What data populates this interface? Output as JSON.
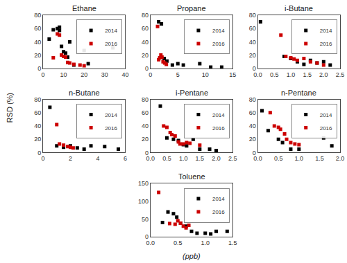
{
  "chart_data": [
    {
      "type": "scatter",
      "title": "Ethane",
      "xlim": [
        0,
        40
      ],
      "ylim": [
        0,
        80
      ],
      "xticks": [
        0,
        10,
        20,
        30,
        40
      ],
      "yticks": [
        0,
        20,
        40,
        60,
        80
      ],
      "legend": "upper right",
      "grid": false,
      "series": [
        {
          "name": "2014",
          "color": "#000000",
          "marker": "square",
          "x": [
            3,
            5,
            7,
            8,
            8,
            9,
            10,
            11,
            12,
            13,
            15,
            20,
            22,
            34
          ],
          "values": [
            44,
            58,
            60,
            62,
            57,
            33,
            25,
            23,
            17,
            40,
            5,
            27,
            7,
            31
          ]
        },
        {
          "name": "2016",
          "color": "#cc0000",
          "marker": "square",
          "x": [
            5,
            7,
            8,
            9,
            10,
            11,
            12,
            13,
            15,
            18,
            20
          ],
          "values": [
            16,
            52,
            50,
            20,
            18,
            17,
            9,
            8,
            6,
            5,
            4
          ]
        }
      ]
    },
    {
      "type": "scatter",
      "title": "Propane",
      "xlim": [
        0,
        15
      ],
      "ylim": [
        0,
        80
      ],
      "xticks": [
        0,
        5,
        10,
        15
      ],
      "yticks": [
        0,
        20,
        40,
        60,
        80
      ],
      "legend": "upper right",
      "grid": false,
      "series": [
        {
          "name": "2014",
          "color": "#000000",
          "marker": "square",
          "x": [
            1.5,
            2.0,
            2.5,
            3.0,
            4.0,
            5.0,
            6.0,
            9.0,
            11.0,
            13.0
          ],
          "values": [
            70,
            67,
            15,
            11,
            5,
            7,
            5,
            7,
            2,
            2
          ]
        },
        {
          "name": "2016",
          "color": "#cc0000",
          "marker": "square",
          "x": [
            1.3,
            1.5,
            1.7,
            1.9,
            2.1,
            2.3,
            2.6,
            2.9
          ],
          "values": [
            63,
            13,
            16,
            20,
            17,
            10,
            8,
            6
          ]
        }
      ]
    },
    {
      "type": "scatter",
      "title": "i-Butane",
      "xlim": [
        0,
        2.5
      ],
      "ylim": [
        0,
        80
      ],
      "xticks": [
        {
          "value": 0,
          "label": "0.0"
        },
        0.5,
        {
          "value": 1.0,
          "label": "1.0"
        },
        1.5,
        {
          "value": 2.0,
          "label": "2.0"
        },
        2.5
      ],
      "yticks": [
        0,
        20,
        40,
        60,
        80
      ],
      "legend": "upper right",
      "grid": false,
      "series": [
        {
          "name": "2014",
          "color": "#000000",
          "marker": "square",
          "x": [
            0.08,
            0.8,
            1.0,
            1.2,
            1.4,
            1.6,
            1.8,
            2.0,
            2.2
          ],
          "values": [
            70,
            18,
            15,
            10,
            6,
            12,
            8,
            10,
            5
          ]
        },
        {
          "name": "2016",
          "color": "#cc0000",
          "marker": "square",
          "x": [
            0.7,
            0.85,
            1.0,
            1.1,
            1.2,
            1.4,
            1.6,
            1.8,
            2.0
          ],
          "values": [
            50,
            18,
            16,
            14,
            12,
            15,
            10,
            8,
            5
          ]
        }
      ]
    },
    {
      "type": "scatter",
      "title": "n-Butane",
      "xlim": [
        0,
        6
      ],
      "ylim": [
        0,
        80
      ],
      "xticks": [
        0,
        2,
        4,
        6
      ],
      "yticks": [
        0,
        20,
        40,
        60,
        80
      ],
      "legend": "upper right",
      "grid": false,
      "series": [
        {
          "name": "2014",
          "color": "#000000",
          "marker": "square",
          "x": [
            0.5,
            1.0,
            1.5,
            2.0,
            2.5,
            3.0,
            3.5,
            4.5,
            5.5
          ],
          "values": [
            68,
            10,
            8,
            10,
            7,
            5,
            10,
            9,
            5
          ]
        },
        {
          "name": "2016",
          "color": "#cc0000",
          "marker": "square",
          "x": [
            1.0,
            1.2,
            1.5,
            1.8,
            2.0,
            2.2
          ],
          "values": [
            42,
            13,
            11,
            9,
            8,
            7
          ]
        }
      ]
    },
    {
      "type": "scatter",
      "title": "i-Pentane",
      "xlim": [
        0,
        2.5
      ],
      "ylim": [
        0,
        80
      ],
      "xticks": [
        {
          "value": 0,
          "label": "0.0"
        },
        0.5,
        {
          "value": 1.0,
          "label": "1.0"
        },
        1.5,
        {
          "value": 2.0,
          "label": "2.0"
        },
        2.5
      ],
      "yticks": [
        0,
        20,
        40,
        60,
        80
      ],
      "legend": "upper right",
      "grid": false,
      "series": [
        {
          "name": "2014",
          "color": "#000000",
          "marker": "square",
          "x": [
            0.3,
            0.5,
            0.7,
            0.85,
            1.0,
            1.1,
            1.3,
            1.5,
            1.8,
            2.0
          ],
          "values": [
            70,
            22,
            20,
            18,
            12,
            10,
            20,
            5,
            5,
            3
          ]
        },
        {
          "name": "2016",
          "color": "#cc0000",
          "marker": "square",
          "x": [
            0.4,
            0.5,
            0.6,
            0.65,
            0.75,
            0.85,
            0.9,
            1.0,
            1.1,
            1.2,
            1.5
          ],
          "values": [
            40,
            38,
            30,
            27,
            25,
            16,
            13,
            13,
            15,
            14,
            11
          ]
        }
      ]
    },
    {
      "type": "scatter",
      "title": "n-Pentane",
      "xlim": [
        0,
        2
      ],
      "ylim": [
        0,
        80
      ],
      "xticks": [
        {
          "value": 0,
          "label": "0.0"
        },
        0.5,
        {
          "value": 1.0,
          "label": "1.0"
        },
        1.5,
        {
          "value": 2.0,
          "label": "2.0"
        }
      ],
      "yticks": [
        0,
        20,
        40,
        60,
        80
      ],
      "legend": "upper right",
      "grid": false,
      "series": [
        {
          "name": "2014",
          "color": "#000000",
          "marker": "square",
          "x": [
            0.1,
            0.25,
            0.5,
            0.6,
            0.8,
            1.0,
            1.6,
            1.8
          ],
          "values": [
            63,
            33,
            20,
            15,
            5,
            5,
            22,
            10
          ]
        },
        {
          "name": "2016",
          "color": "#cc0000",
          "marker": "square",
          "x": [
            0.3,
            0.4,
            0.5,
            0.55,
            0.65,
            0.7,
            0.8,
            0.9,
            1.0
          ],
          "values": [
            60,
            40,
            38,
            35,
            28,
            20,
            15,
            13,
            12
          ]
        }
      ]
    },
    {
      "type": "scatter",
      "title": "Toluene",
      "xlim": [
        0,
        1.5
      ],
      "ylim": [
        0,
        150
      ],
      "xticks": [
        {
          "value": 0,
          "label": "0.0"
        },
        0.5,
        {
          "value": 1.0,
          "label": "1.0"
        },
        1.5
      ],
      "yticks": [
        0,
        50,
        100,
        150
      ],
      "legend": "upper right",
      "grid": false,
      "series": [
        {
          "name": "2014",
          "color": "#000000",
          "marker": "square",
          "x": [
            0.22,
            0.32,
            0.42,
            0.48,
            0.55,
            0.65,
            0.75,
            0.85,
            1.0,
            1.1,
            1.2,
            1.4
          ],
          "values": [
            40,
            70,
            65,
            55,
            38,
            30,
            15,
            10,
            10,
            8,
            15,
            15
          ]
        },
        {
          "name": "2016",
          "color": "#cc0000",
          "marker": "square",
          "x": [
            0.15,
            0.35,
            0.45,
            0.5,
            0.55,
            0.6,
            0.65,
            0.7
          ],
          "values": [
            125,
            37,
            35,
            45,
            38,
            30,
            25,
            32
          ]
        }
      ]
    }
  ],
  "xlabel": "(ppb)",
  "ylabel": "RSD (%)"
}
